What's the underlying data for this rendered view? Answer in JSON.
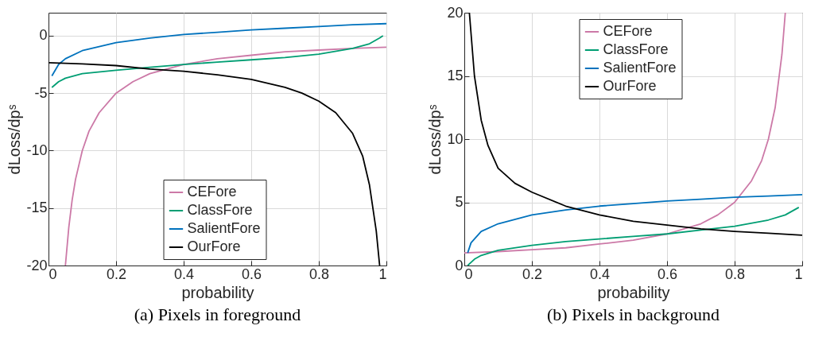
{
  "chart_data": [
    {
      "type": "line",
      "title": "(a) Pixels in foreground",
      "xlabel": "probability",
      "ylabel": "dLoss/dpˢ",
      "xlim": [
        0,
        1
      ],
      "ylim": [
        -20,
        2
      ],
      "xticks": [
        0,
        0.2,
        0.4,
        0.6,
        0.8,
        1
      ],
      "yticks": [
        -20,
        -15,
        -10,
        -5,
        0
      ],
      "grid": true,
      "legend": "bottom",
      "marker": "none",
      "line_style": "solid",
      "series": [
        {
          "name": "CEFore",
          "color": "#cc79a7",
          "x": [
            0.05,
            0.06,
            0.07,
            0.08,
            0.1,
            0.12,
            0.15,
            0.2,
            0.25,
            0.3,
            0.4,
            0.5,
            0.6,
            0.7,
            0.8,
            0.9,
            1
          ],
          "values": [
            -20,
            -16.7,
            -14.3,
            -12.5,
            -10,
            -8.3,
            -6.7,
            -5,
            -4,
            -3.3,
            -2.5,
            -2,
            -1.7,
            -1.4,
            -1.25,
            -1.1,
            -1
          ]
        },
        {
          "name": "ClassFore",
          "color": "#009e73",
          "x": [
            0.01,
            0.03,
            0.05,
            0.1,
            0.2,
            0.3,
            0.4,
            0.5,
            0.6,
            0.7,
            0.8,
            0.9,
            0.95,
            0.98,
            0.99
          ],
          "values": [
            -4.5,
            -4,
            -3.7,
            -3.3,
            -3,
            -2.75,
            -2.5,
            -2.3,
            -2.1,
            -1.9,
            -1.6,
            -1.1,
            -0.7,
            -0.2,
            0
          ]
        },
        {
          "name": "SalientFore",
          "color": "#0072bd",
          "x": [
            0.01,
            0.03,
            0.05,
            0.1,
            0.2,
            0.3,
            0.4,
            0.5,
            0.6,
            0.7,
            0.8,
            0.9,
            1
          ],
          "values": [
            -3.5,
            -2.5,
            -2,
            -1.3,
            -0.6,
            -0.2,
            0.1,
            0.3,
            0.5,
            0.65,
            0.8,
            0.95,
            1.05
          ]
        },
        {
          "name": "OurFore",
          "color": "#000000",
          "x": [
            0,
            0.1,
            0.2,
            0.3,
            0.4,
            0.5,
            0.6,
            0.7,
            0.75,
            0.8,
            0.85,
            0.9,
            0.93,
            0.95,
            0.97,
            0.98
          ],
          "values": [
            -2.35,
            -2.45,
            -2.6,
            -2.9,
            -3.1,
            -3.4,
            -3.8,
            -4.5,
            -5,
            -5.7,
            -6.7,
            -8.5,
            -10.5,
            -13,
            -17,
            -20
          ]
        }
      ]
    },
    {
      "type": "line",
      "title": "(b) Pixels in background",
      "xlabel": "probability",
      "ylabel": "dLoss/dpˢ",
      "xlim": [
        0,
        1
      ],
      "ylim": [
        0,
        20
      ],
      "xticks": [
        0,
        0.2,
        0.4,
        0.6,
        0.8,
        1
      ],
      "yticks": [
        0,
        5,
        10,
        15,
        20
      ],
      "grid": true,
      "legend": "top",
      "marker": "none",
      "line_style": "solid",
      "series": [
        {
          "name": "CEFore",
          "color": "#cc79a7",
          "x": [
            0,
            0.1,
            0.2,
            0.3,
            0.4,
            0.5,
            0.6,
            0.7,
            0.75,
            0.8,
            0.85,
            0.88,
            0.9,
            0.92,
            0.94,
            0.95
          ],
          "values": [
            1,
            1.1,
            1.25,
            1.4,
            1.7,
            2,
            2.5,
            3.3,
            4,
            5,
            6.7,
            8.3,
            10,
            12.5,
            16.7,
            20
          ]
        },
        {
          "name": "ClassFore",
          "color": "#009e73",
          "x": [
            0.01,
            0.03,
            0.05,
            0.1,
            0.2,
            0.3,
            0.4,
            0.5,
            0.6,
            0.7,
            0.8,
            0.9,
            0.95,
            0.99
          ],
          "values": [
            0,
            0.5,
            0.8,
            1.2,
            1.6,
            1.9,
            2.1,
            2.3,
            2.5,
            2.8,
            3.1,
            3.6,
            4,
            4.6
          ]
        },
        {
          "name": "SalientFore",
          "color": "#0072bd",
          "x": [
            0.01,
            0.02,
            0.05,
            0.1,
            0.2,
            0.3,
            0.4,
            0.5,
            0.6,
            0.7,
            0.8,
            0.9,
            1
          ],
          "values": [
            1,
            1.8,
            2.7,
            3.3,
            4,
            4.4,
            4.7,
            4.9,
            5.1,
            5.25,
            5.4,
            5.5,
            5.6
          ]
        },
        {
          "name": "OurFore",
          "color": "#000000",
          "x": [
            0.015,
            0.03,
            0.05,
            0.07,
            0.1,
            0.15,
            0.2,
            0.3,
            0.4,
            0.5,
            0.6,
            0.7,
            0.8,
            0.9,
            1
          ],
          "values": [
            20,
            15,
            11.5,
            9.5,
            7.7,
            6.5,
            5.8,
            4.7,
            4,
            3.5,
            3.2,
            2.9,
            2.7,
            2.55,
            2.4
          ]
        }
      ]
    }
  ]
}
